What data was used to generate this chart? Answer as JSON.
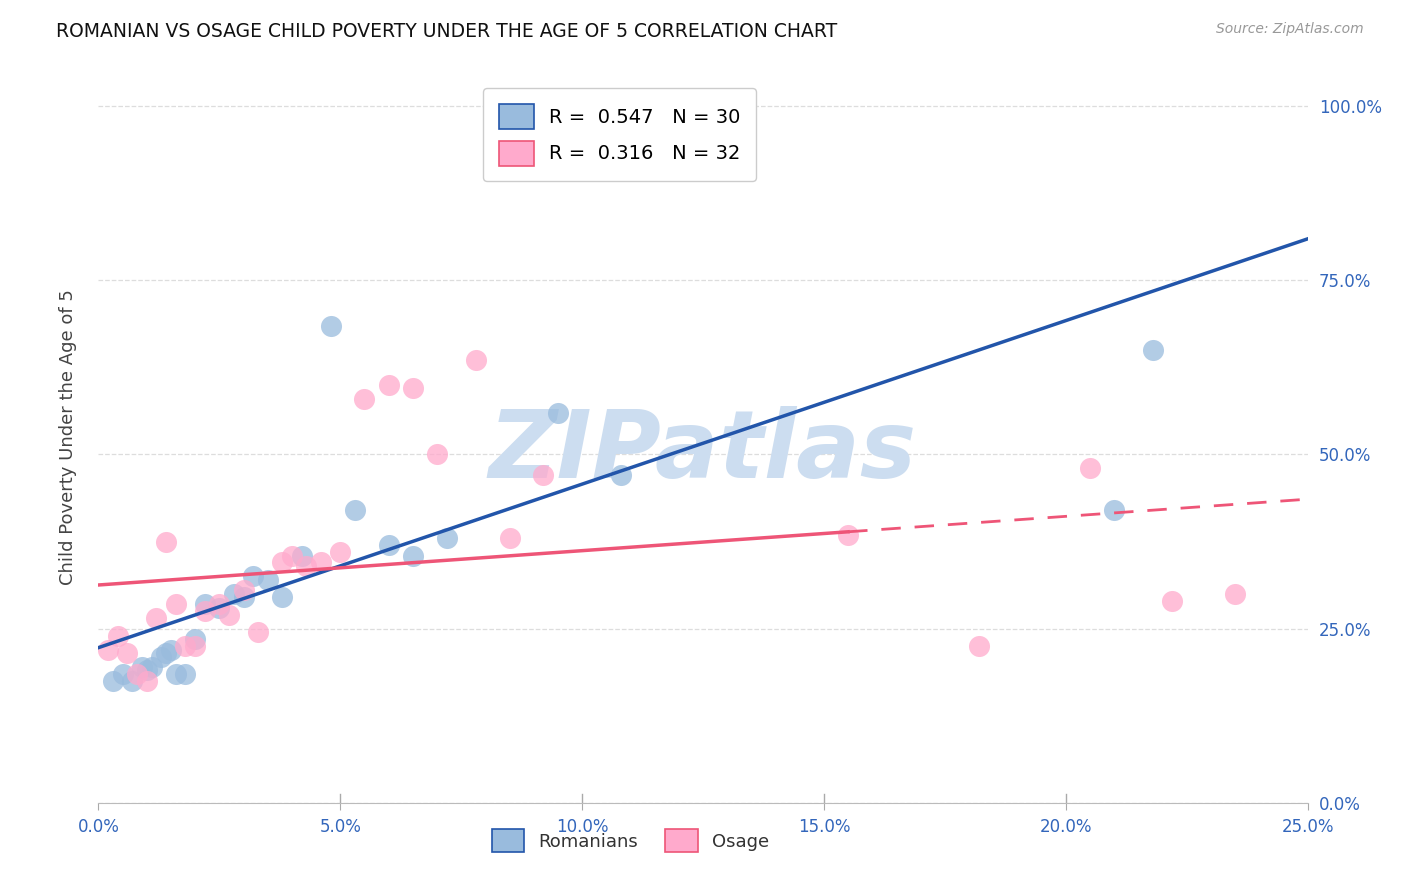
{
  "title": "ROMANIAN VS OSAGE CHILD POVERTY UNDER THE AGE OF 5 CORRELATION CHART",
  "source": "Source: ZipAtlas.com",
  "xlim": [
    0.0,
    0.25
  ],
  "ylim": [
    0.0,
    1.05
  ],
  "romanians_x": [
    0.003,
    0.005,
    0.007,
    0.009,
    0.01,
    0.011,
    0.013,
    0.014,
    0.015,
    0.016,
    0.018,
    0.02,
    0.022,
    0.025,
    0.028,
    0.03,
    0.032,
    0.035,
    0.038,
    0.042,
    0.048,
    0.053,
    0.06,
    0.065,
    0.072,
    0.095,
    0.108,
    0.13,
    0.21,
    0.218
  ],
  "romanians_y": [
    0.175,
    0.185,
    0.175,
    0.195,
    0.19,
    0.195,
    0.21,
    0.215,
    0.22,
    0.185,
    0.185,
    0.235,
    0.285,
    0.28,
    0.3,
    0.295,
    0.325,
    0.32,
    0.295,
    0.355,
    0.685,
    0.42,
    0.37,
    0.355,
    0.38,
    0.56,
    0.47,
    0.96,
    0.42,
    0.65
  ],
  "osage_x": [
    0.002,
    0.004,
    0.006,
    0.008,
    0.01,
    0.012,
    0.014,
    0.016,
    0.018,
    0.02,
    0.022,
    0.025,
    0.027,
    0.03,
    0.033,
    0.038,
    0.04,
    0.043,
    0.046,
    0.05,
    0.055,
    0.06,
    0.065,
    0.07,
    0.078,
    0.085,
    0.092,
    0.155,
    0.182,
    0.205,
    0.222,
    0.235
  ],
  "osage_y": [
    0.22,
    0.24,
    0.215,
    0.185,
    0.175,
    0.265,
    0.375,
    0.285,
    0.225,
    0.225,
    0.275,
    0.285,
    0.27,
    0.305,
    0.245,
    0.345,
    0.355,
    0.34,
    0.345,
    0.36,
    0.58,
    0.6,
    0.595,
    0.5,
    0.635,
    0.38,
    0.47,
    0.385,
    0.225,
    0.48,
    0.29,
    0.3
  ],
  "blue_dot_color": "#99BBDD",
  "pink_dot_color": "#FFAACC",
  "blue_line_color": "#2255AA",
  "pink_line_color": "#EE5577",
  "watermark": "ZIPatlas",
  "watermark_color": "#CCDDF0",
  "legend_r_romanian": "0.547",
  "legend_n_romanian": "30",
  "legend_r_osage": "0.316",
  "legend_n_osage": "32",
  "ylabel": "Child Poverty Under the Age of 5",
  "grid_color": "#DDDDDD",
  "ytick_vals": [
    0.0,
    0.25,
    0.5,
    0.75,
    1.0
  ],
  "ytick_labels": [
    "0.0%",
    "25.0%",
    "50.0%",
    "75.0%",
    "100.0%"
  ],
  "xtick_vals": [
    0.0,
    0.05,
    0.1,
    0.15,
    0.2,
    0.25
  ],
  "xtick_labels": [
    "0.0%",
    "5.0%",
    "10.0%",
    "15.0%",
    "20.0%",
    "25.0%"
  ]
}
